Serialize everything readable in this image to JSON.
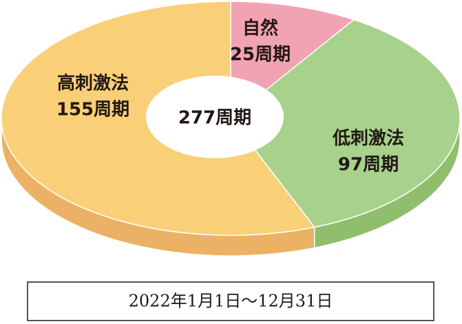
{
  "chart_data": {
    "type": "donut3d",
    "categories": [
      "自然",
      "低刺激法",
      "高刺激法"
    ],
    "values": [
      25,
      97,
      155
    ],
    "value_labels": [
      "25周期",
      "97周期",
      "155周期"
    ],
    "colors": [
      "#f2a3b3",
      "#a8d18c",
      "#f9cf78"
    ],
    "side_colors": [
      "#d98a9a",
      "#8fbf6c",
      "#ebb266"
    ],
    "center_label": "277周期",
    "note": "2022年1月1日～12月31日"
  }
}
